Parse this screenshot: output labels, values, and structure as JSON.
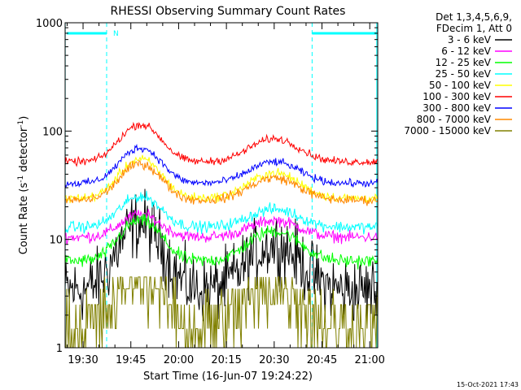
{
  "chart_data": {
    "type": "line",
    "title": "RHESSI Observing Summary Count Rates",
    "xlabel": "Start Time (16-Jun-07 19:24:22)",
    "ylabel_main": "Count Rate (s",
    "ylabel_sup1": "-1",
    "ylabel_mid": " detector",
    "ylabel_sup2": "-1",
    "ylabel_end": ")",
    "y_scale": "log",
    "ylim": [
      1,
      1000
    ],
    "xlim_min": [
      1164.37,
      1262.5
    ],
    "x_ticks": [
      {
        "label": "19:30",
        "min": 1170
      },
      {
        "label": "19:45",
        "min": 1185
      },
      {
        "label": "20:00",
        "min": 1200
      },
      {
        "label": "20:15",
        "min": 1215
      },
      {
        "label": "20:30",
        "min": 1230
      },
      {
        "label": "20:45",
        "min": 1245
      },
      {
        "label": "21:00",
        "min": 1260
      }
    ],
    "y_ticks": [
      {
        "label": "1",
        "v": 1
      },
      {
        "label": "10",
        "v": 10
      },
      {
        "label": "100",
        "v": 100
      },
      {
        "label": "1000",
        "v": 1000
      }
    ],
    "legend_header": [
      "Det 1,3,4,5,6,9,",
      "FDecim 1, Att 0"
    ],
    "series": [
      {
        "name": "3 - 6 keV",
        "color": "#000000",
        "base": 3.4,
        "peak1": 14,
        "peak2": 9,
        "noise": 0.35
      },
      {
        "name": "6 - 12 keV",
        "color": "#ff00ff",
        "base": 10.5,
        "peak1": 17,
        "peak2": 15,
        "noise": 0.06
      },
      {
        "name": "12 - 25 keV",
        "color": "#00ff00",
        "base": 6.3,
        "peak1": 15,
        "peak2": 12,
        "noise": 0.07
      },
      {
        "name": "25 - 50 keV",
        "color": "#00ffff",
        "base": 13,
        "peak1": 25,
        "peak2": 19,
        "noise": 0.06
      },
      {
        "name": "50 - 100 keV",
        "color": "#ffff00",
        "base": 24,
        "peak1": 55,
        "peak2": 41,
        "noise": 0.05
      },
      {
        "name": "100 - 300 keV",
        "color": "#ff0000",
        "base": 52,
        "peak1": 115,
        "peak2": 85,
        "noise": 0.04
      },
      {
        "name": "300 - 800 keV",
        "color": "#0000ff",
        "base": 33,
        "peak1": 70,
        "peak2": 52,
        "noise": 0.04
      },
      {
        "name": "800 - 7000 keV",
        "color": "#ff8800",
        "base": 23,
        "peak1": 50,
        "peak2": 37,
        "noise": 0.05
      },
      {
        "name": "7000 - 15000 keV",
        "color": "#808000",
        "base": 1.5,
        "peak1": 4.4,
        "peak2": 3.5,
        "noise": 0.5
      }
    ],
    "night_boundaries_min": [
      1164.4,
      1177.4,
      1241.9,
      1262.2
    ],
    "saa_marker": {
      "label": "N",
      "min": 1177.4
    }
  },
  "timestamp": "15-Oct-2021 17:43"
}
